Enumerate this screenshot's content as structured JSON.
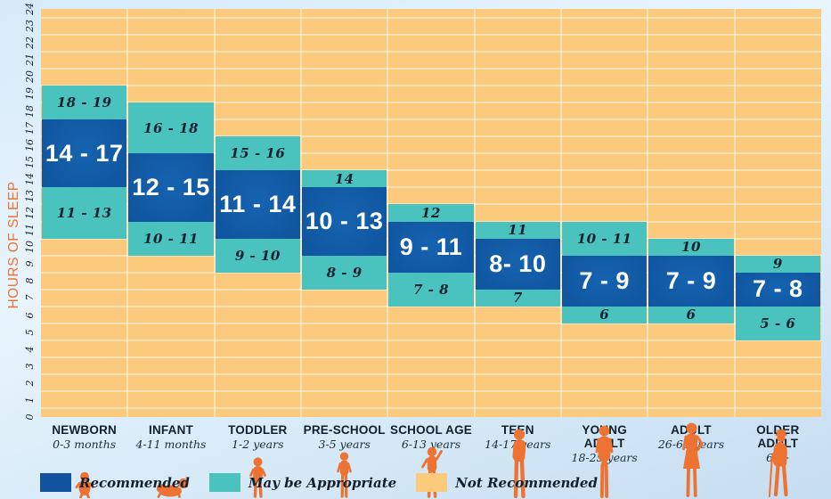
{
  "y_axis": {
    "label": "HOURS OF SLEEP",
    "ticks": [
      "0",
      "1",
      "2",
      "3",
      "4",
      "5",
      "6",
      "7",
      "8",
      "9",
      "10",
      "11",
      "12",
      "13",
      "14",
      "15",
      "16",
      "17",
      "18",
      "19",
      "20",
      "21",
      "22",
      "23",
      "24"
    ]
  },
  "legend": [
    {
      "label": "Recommended",
      "color": "#12529F"
    },
    {
      "label": "May be Appropriate",
      "color": "#4AC3BF"
    },
    {
      "label": "Not Recommended",
      "color": "#FBCA7D"
    }
  ],
  "colors": {
    "recommended_blue": "#0F549E",
    "may_be_appropriate_teal": "#4AC3BF",
    "not_recommended_orange": "#FBCA7D",
    "accent_orange": "#EE7231",
    "text_navy": "#17212E"
  },
  "figures": [
    "figure-newborn-icon",
    "figure-infant-crawling-icon",
    "figure-toddler-icon",
    "figure-preschooler-icon",
    "figure-school-age-child-icon",
    "figure-teen-icon",
    "figure-young-adult-icon",
    "figure-adult-icon",
    "figure-older-adult-with-cane-icon"
  ],
  "chart_data": {
    "type": "bar",
    "variant": "stacked-range-bands",
    "categories": [
      "NEWBORN",
      "INFANT",
      "TODDLER",
      "PRE-SCHOOL",
      "SCHOOL AGE",
      "TEEN",
      "YOUNG ADULT",
      "ADULT",
      "OLDER ADULT"
    ],
    "category_sublabels": [
      "0-3 months",
      "4-11 months",
      "1-2 years",
      "3-5 years",
      "6-13 years",
      "14-17 years",
      "18-25 years",
      "26-64 years",
      "65+"
    ],
    "series": [
      {
        "name": "May be Appropriate (upper)",
        "key": "upper",
        "role": "may",
        "labels": [
          "18 - 19",
          "16 - 18",
          "15 - 16",
          "14",
          "12",
          "11",
          "10 - 11",
          "10",
          "9"
        ],
        "ranges": [
          [
            17.5,
            19.5
          ],
          [
            15.5,
            18.5
          ],
          [
            14.5,
            16.5
          ],
          [
            13.5,
            14.5
          ],
          [
            11.5,
            12.5
          ],
          [
            10.5,
            11.5
          ],
          [
            9.5,
            11.5
          ],
          [
            9.5,
            10.5
          ],
          [
            8.5,
            9.5
          ]
        ]
      },
      {
        "name": "Recommended",
        "key": "recommended",
        "role": "recommended",
        "labels": [
          "14 - 17",
          "12 - 15",
          "11 - 14",
          "10 - 13",
          "9 - 11",
          "8- 10",
          "7 - 9",
          "7 - 9",
          "7 - 8"
        ],
        "ranges": [
          [
            13.5,
            17.5
          ],
          [
            11.5,
            15.5
          ],
          [
            10.5,
            14.5
          ],
          [
            9.5,
            13.5
          ],
          [
            8.5,
            11.5
          ],
          [
            7.5,
            10.5
          ],
          [
            6.5,
            9.5
          ],
          [
            6.5,
            9.5
          ],
          [
            6.5,
            8.5
          ]
        ]
      },
      {
        "name": "May be Appropriate (lower)",
        "key": "lower",
        "role": "may",
        "labels": [
          "11 - 13",
          "10 - 11",
          "9 - 10",
          "8 - 9",
          "7 - 8",
          "7",
          "6",
          "6",
          "5 - 6"
        ],
        "ranges": [
          [
            10.5,
            13.5
          ],
          [
            9.5,
            11.5
          ],
          [
            8.5,
            10.5
          ],
          [
            7.5,
            9.5
          ],
          [
            6.5,
            8.5
          ],
          [
            6.5,
            7.5
          ],
          [
            5.5,
            6.5
          ],
          [
            5.5,
            6.5
          ],
          [
            4.5,
            6.5
          ]
        ]
      }
    ],
    "ylim": [
      0,
      24
    ],
    "ylabel": "HOURS OF SLEEP",
    "yticks": [
      0,
      1,
      2,
      3,
      4,
      5,
      6,
      7,
      8,
      9,
      10,
      11,
      12,
      13,
      14,
      15,
      16,
      17,
      18,
      19,
      20,
      21,
      22,
      23,
      24
    ],
    "grid": true,
    "gridline_offset_hours": 0.5,
    "legend_position": "bottom-left"
  }
}
